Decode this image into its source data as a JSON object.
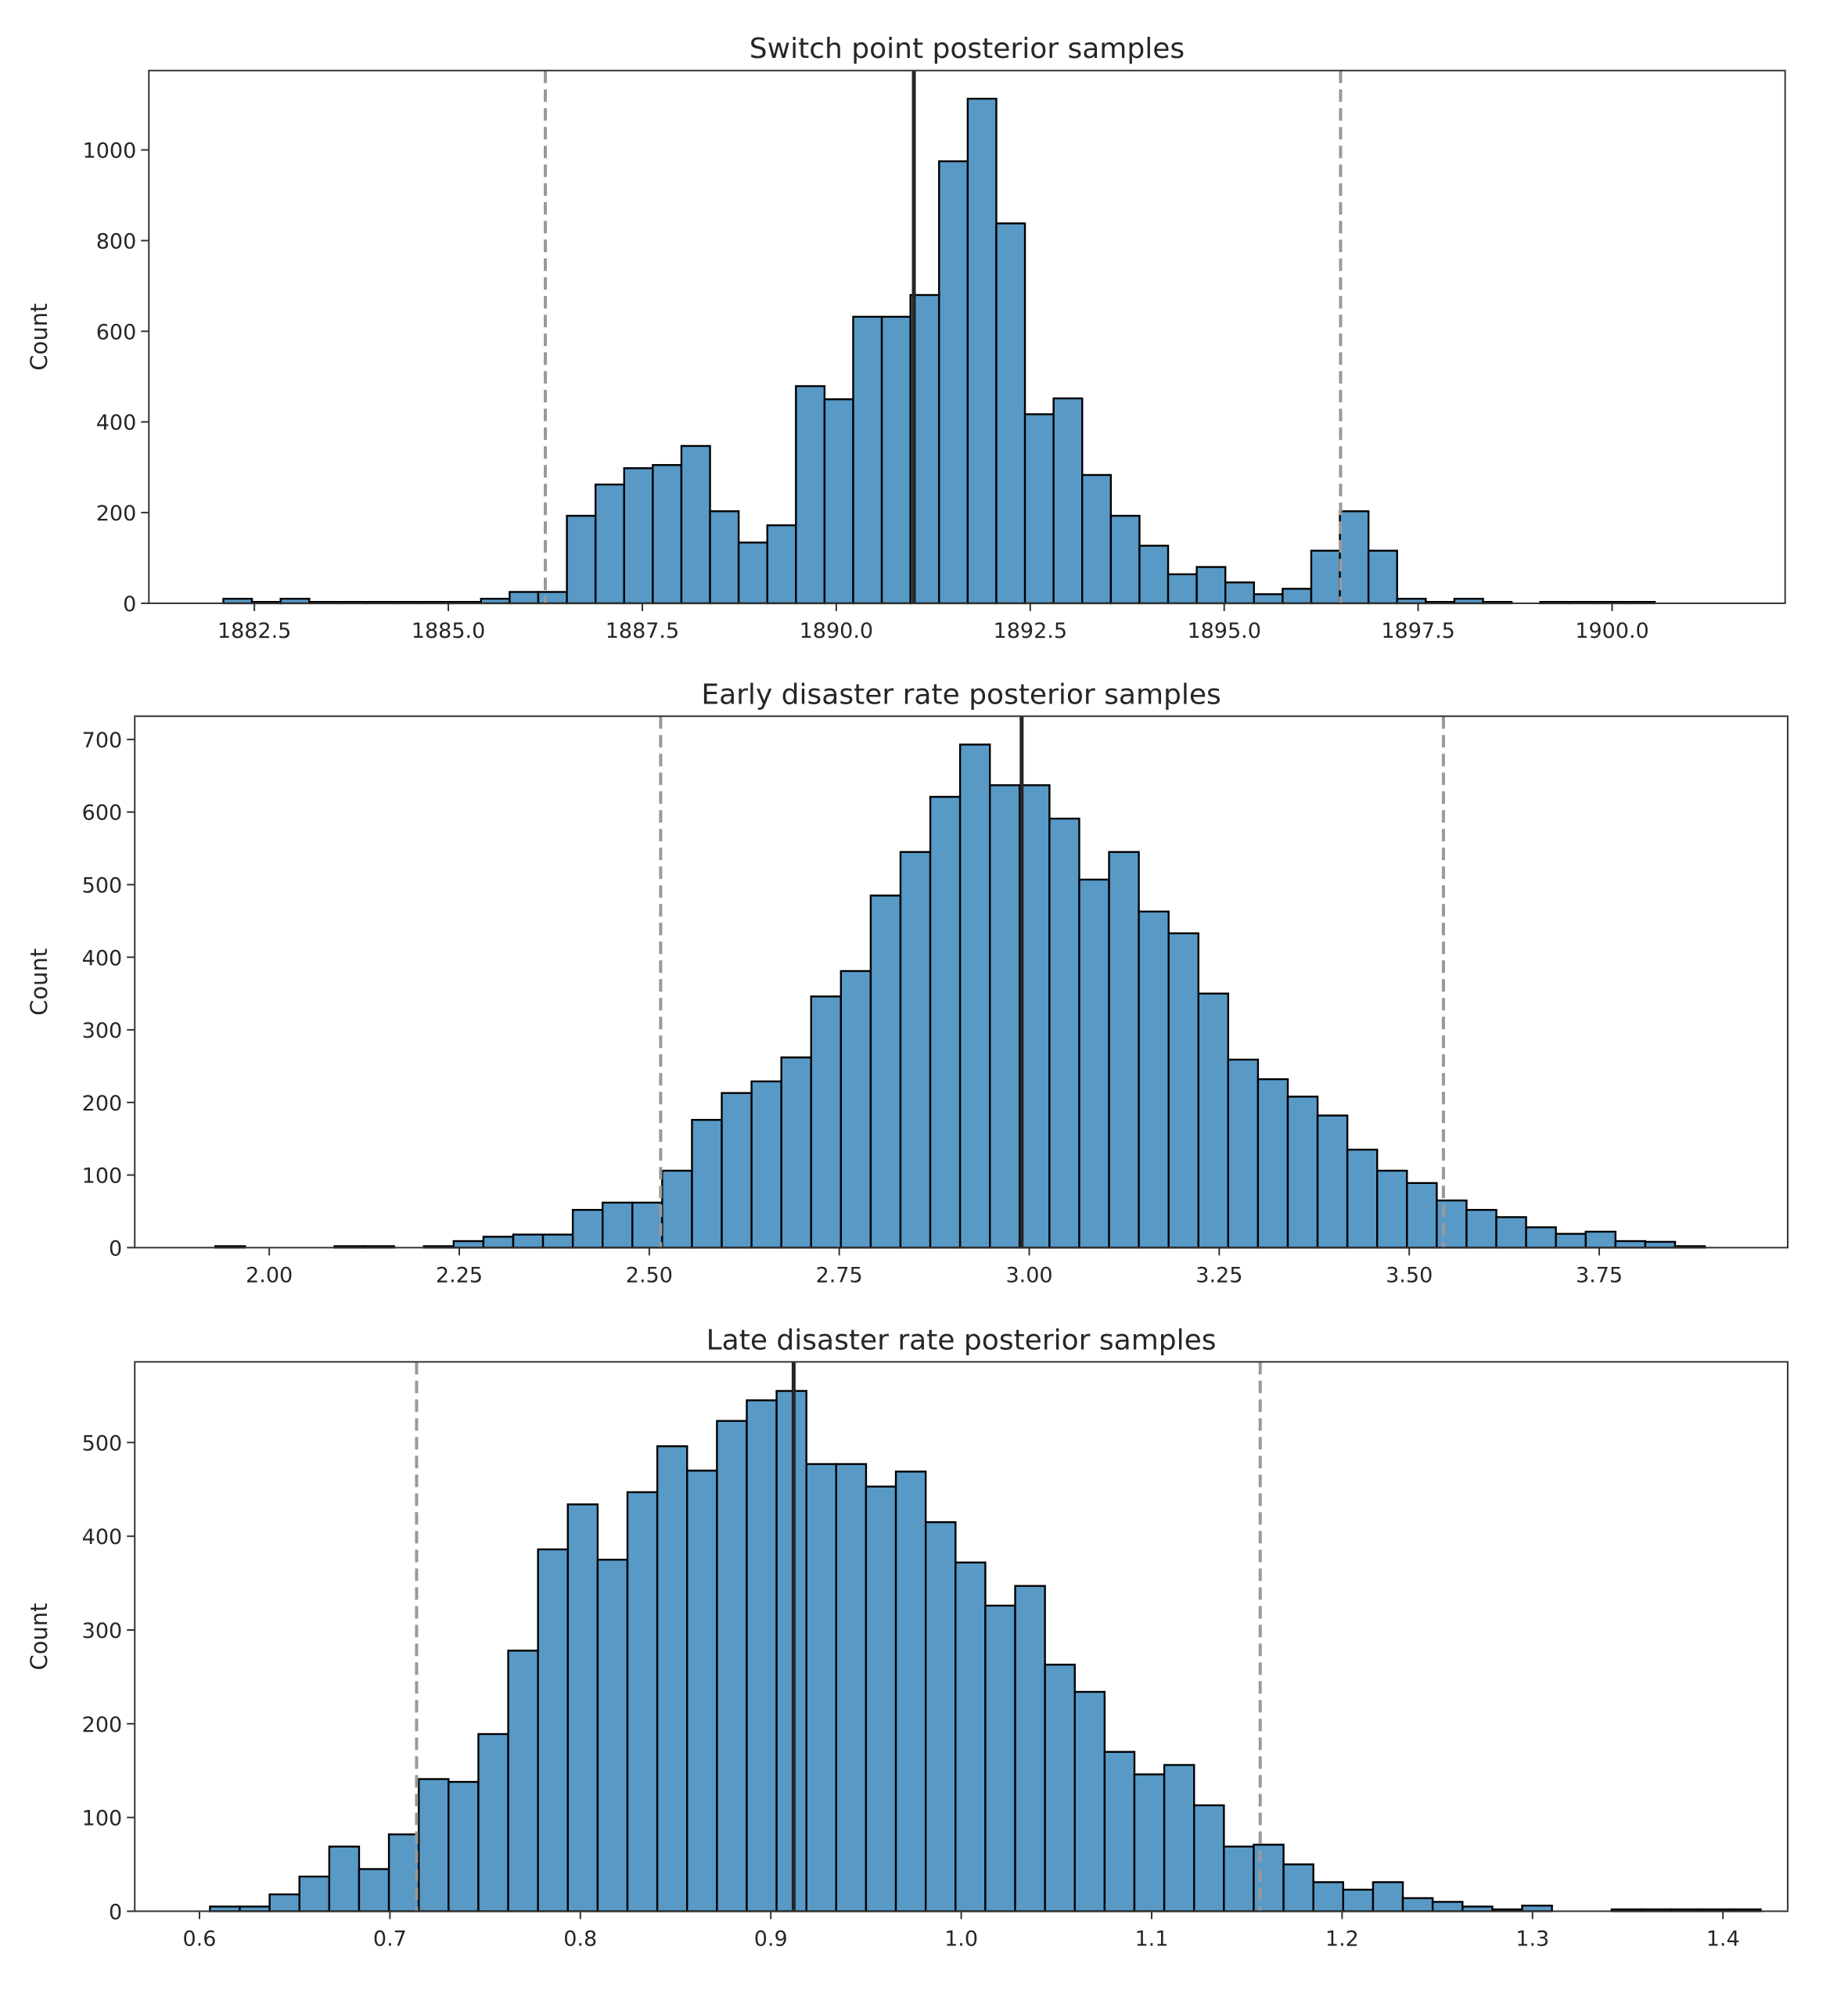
{
  "figure": {
    "background": "#ffffff",
    "bar_color": "#5899c6",
    "edge_color": "#000000"
  },
  "chart_data": [
    {
      "type": "bar",
      "title": "Switch point posterior samples",
      "xlabel": "",
      "ylabel": "Count",
      "xlim": [
        1881.14,
        1902.23
      ],
      "ylim": [
        0,
        1175
      ],
      "grid": false,
      "legend": "none",
      "xticks": [
        1882.5,
        1885.0,
        1887.5,
        1890.0,
        1892.5,
        1895.0,
        1897.5,
        1900.0
      ],
      "xtick_labels": [
        "1882.5",
        "1885.0",
        "1887.5",
        "1890.0",
        "1892.5",
        "1895.0",
        "1897.5",
        "1900.0"
      ],
      "yticks": [
        0,
        200,
        400,
        600,
        800,
        1000
      ],
      "ytick_labels": [
        "0",
        "200",
        "400",
        "600",
        "800",
        "1000"
      ],
      "bin_start": 1882.1,
      "bin_width": 0.369,
      "values": [
        10,
        3,
        10,
        3,
        3,
        3,
        3,
        3,
        3,
        10,
        25,
        25,
        193,
        262,
        298,
        305,
        347,
        203,
        134,
        172,
        479,
        450,
        632,
        632,
        680,
        975,
        1113,
        838,
        417,
        452,
        283,
        193,
        127,
        64,
        80,
        46,
        20,
        32,
        116,
        203,
        116,
        10,
        3,
        10,
        3,
        0,
        3,
        3,
        3,
        3
      ],
      "mean_line": 1891.0,
      "interval_lines": [
        1886.25,
        1896.5
      ]
    },
    {
      "type": "bar",
      "title": "Early disaster rate posterior samples",
      "xlabel": "",
      "ylabel": "Count",
      "xlim": [
        1.823,
        3.998
      ],
      "ylim": [
        0,
        732
      ],
      "grid": false,
      "legend": "none",
      "xticks": [
        2.0,
        2.25,
        2.5,
        2.75,
        3.0,
        3.25,
        3.5,
        3.75
      ],
      "xtick_labels": [
        "2.00",
        "2.25",
        "2.50",
        "2.75",
        "3.00",
        "3.25",
        "3.50",
        "3.75"
      ],
      "yticks": [
        0,
        100,
        200,
        300,
        400,
        500,
        600,
        700
      ],
      "ytick_labels": [
        "0",
        "100",
        "200",
        "300",
        "400",
        "500",
        "600",
        "700"
      ],
      "bin_start": 1.929,
      "bin_width": 0.0392,
      "values": [
        2,
        0,
        0,
        0,
        2,
        2,
        0,
        2,
        9,
        15,
        18,
        18,
        52,
        62,
        62,
        106,
        176,
        213,
        229,
        262,
        346,
        381,
        485,
        545,
        621,
        693,
        637,
        637,
        591,
        507,
        545,
        463,
        433,
        350,
        259,
        232,
        208,
        182,
        135,
        106,
        89,
        65,
        52,
        42,
        28,
        19,
        22,
        9,
        8,
        2
      ],
      "mean_line": 2.99,
      "interval_lines": [
        2.515,
        3.545
      ]
    },
    {
      "type": "bar",
      "title": "Late disaster rate posterior samples",
      "xlabel": "",
      "ylabel": "Count",
      "xlim": [
        0.566,
        1.434
      ],
      "ylim": [
        0,
        586
      ],
      "grid": false,
      "legend": "none",
      "xticks": [
        0.6,
        0.7,
        0.8,
        0.9,
        1.0,
        1.1,
        1.2,
        1.3,
        1.4
      ],
      "xtick_labels": [
        "0.6",
        "0.7",
        "0.8",
        "0.9",
        "1.0",
        "1.1",
        "1.2",
        "1.3",
        "1.4"
      ],
      "yticks": [
        0,
        100,
        200,
        300,
        400,
        500
      ],
      "ytick_labels": [
        "0",
        "100",
        "200",
        "300",
        "400",
        "500"
      ],
      "bin_start": 0.6055,
      "bin_width": 0.01566,
      "values": [
        5,
        5,
        18,
        37,
        69,
        45,
        82,
        141,
        138,
        189,
        278,
        386,
        434,
        375,
        447,
        496,
        470,
        523,
        545,
        555,
        477,
        477,
        453,
        469,
        415,
        372,
        326,
        347,
        263,
        234,
        170,
        146,
        156,
        113,
        69,
        71,
        50,
        31,
        23,
        31,
        14,
        10,
        5,
        2,
        6,
        0,
        0,
        2,
        2,
        2,
        2,
        2
      ],
      "mean_line": 0.912,
      "interval_lines": [
        0.714,
        1.157
      ]
    }
  ]
}
